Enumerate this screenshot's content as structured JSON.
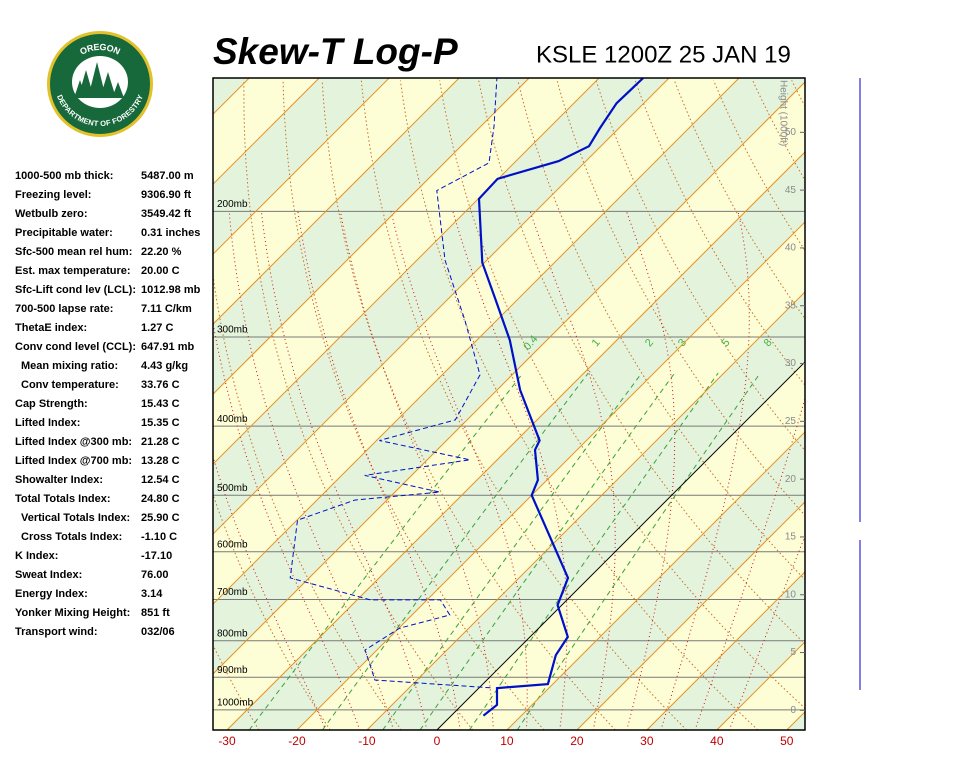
{
  "logo": {
    "top": "OREGON",
    "bottom": "DEPARTMENT OF FORESTRY"
  },
  "indices": [
    {
      "label": "1000-500 mb thick:",
      "value": "5487.00 m"
    },
    {
      "label": "Freezing level:",
      "value": "9306.90 ft"
    },
    {
      "label": "Wetbulb zero:",
      "value": "3549.42 ft"
    },
    {
      "label": "Precipitable water:",
      "value": "0.31 inches"
    },
    {
      "label": "Sfc-500 mean rel hum:",
      "value": "22.20 %"
    },
    {
      "label": "Est. max temperature:",
      "value": "20.00 C"
    },
    {
      "label": "Sfc-Lift cond lev (LCL):",
      "value": "1012.98 mb"
    },
    {
      "label": "700-500 lapse rate:",
      "value": "7.11 C/km"
    },
    {
      "label": "ThetaE index:",
      "value": "1.27 C"
    },
    {
      "label": "Conv cond level (CCL):",
      "value": "647.91 mb"
    },
    {
      "label": "Mean mixing ratio:",
      "value": "4.43 g/kg"
    },
    {
      "label": "Conv temperature:",
      "value": "33.76 C"
    },
    {
      "label": "Cap Strength:",
      "value": "15.43 C"
    },
    {
      "label": "Lifted Index:",
      "value": "15.35 C"
    },
    {
      "label": "Lifted Index @300 mb:",
      "value": "21.28 C"
    },
    {
      "label": "Lifted Index @700 mb:",
      "value": "13.28 C"
    },
    {
      "label": "Showalter Index:",
      "value": "12.54 C"
    },
    {
      "label": "Total Totals Index:",
      "value": "24.80 C"
    },
    {
      "label": "Vertical Totals Index:",
      "value": "25.90 C"
    },
    {
      "label": "Cross Totals Index:",
      "value": "-1.10 C"
    },
    {
      "label": "K Index:",
      "value": "-17.10"
    },
    {
      "label": "Sweat Index:",
      "value": "76.00"
    },
    {
      "label": "Energy Index:",
      "value": "3.14"
    },
    {
      "label": "Yonker Mixing Height:",
      "value": "851 ft"
    },
    {
      "label": "Transport wind:",
      "value": "032/06"
    }
  ],
  "chart_data": {
    "type": "skewt",
    "title": "Skew-T Log-P",
    "subtitle": "KSLE 1200Z 25 JAN 19",
    "y2label": "Height (1000ft)",
    "xlim": [
      -32,
      52.6
    ],
    "xticks": [
      -30,
      -20,
      -10,
      0,
      10,
      20,
      30,
      40,
      50
    ],
    "ylim": [
      1067,
      130
    ],
    "log_y": true,
    "yticks": [
      {
        "value": 1000,
        "label": "1000mb"
      },
      {
        "value": 900,
        "label": "900mb"
      },
      {
        "value": 800,
        "label": "800mb"
      },
      {
        "value": 700,
        "label": "700mb"
      },
      {
        "value": 600,
        "label": "600mb"
      },
      {
        "value": 500,
        "label": "500mb"
      },
      {
        "value": 400,
        "label": "400mb"
      },
      {
        "value": 300,
        "label": "300mb"
      },
      {
        "value": 200,
        "label": "200mb"
      }
    ],
    "y2lim": [
      -1.7,
      54.7
    ],
    "y2ticks": [
      0,
      5,
      10,
      15,
      20,
      25,
      30,
      35,
      40,
      45,
      50
    ],
    "mixing_ratios": [
      0.4,
      1,
      2,
      3,
      5,
      8
    ],
    "zero_isotherm_color": "#000000",
    "series": [
      {
        "color": "#0010c8",
        "dashed": false,
        "pressure": [
          1019,
          984,
          932,
          920,
          838,
          790,
          713,
          653,
          500,
          476,
          432,
          419,
          356,
          303,
          266,
          236,
          192,
          180,
          170,
          162,
          153,
          141,
          130
        ],
        "values": [
          4.6,
          5.0,
          2.6,
          9.3,
          6.3,
          5.4,
          -0.6,
          -3.0,
          -20.0,
          -21.3,
          -26.0,
          -26.7,
          -36.7,
          -45.3,
          -53.1,
          -60.3,
          -69.9,
          -70.1,
          -63.9,
          -61.7,
          -62.7,
          -63.9,
          -63.7
        ]
      },
      {
        "color": "#0010c8",
        "dashed": true,
        "pressure": [
          931,
          908,
          824,
          768,
          736,
          701,
          701,
          653,
          542,
          508,
          495,
          469,
          446,
          419,
          392,
          339,
          284,
          234,
          187,
          171,
          152,
          130
        ],
        "values": [
          1.6,
          -16.0,
          -21.7,
          -19.9,
          -14.6,
          -18.1,
          -28.1,
          -42.7,
          -49.9,
          -44.6,
          -33.6,
          -46.7,
          -33.9,
          -49.6,
          -41.7,
          -44.6,
          -54.6,
          -66.0,
          -77.1,
          -73.6,
          -78.1,
          -84.6
        ]
      }
    ]
  }
}
